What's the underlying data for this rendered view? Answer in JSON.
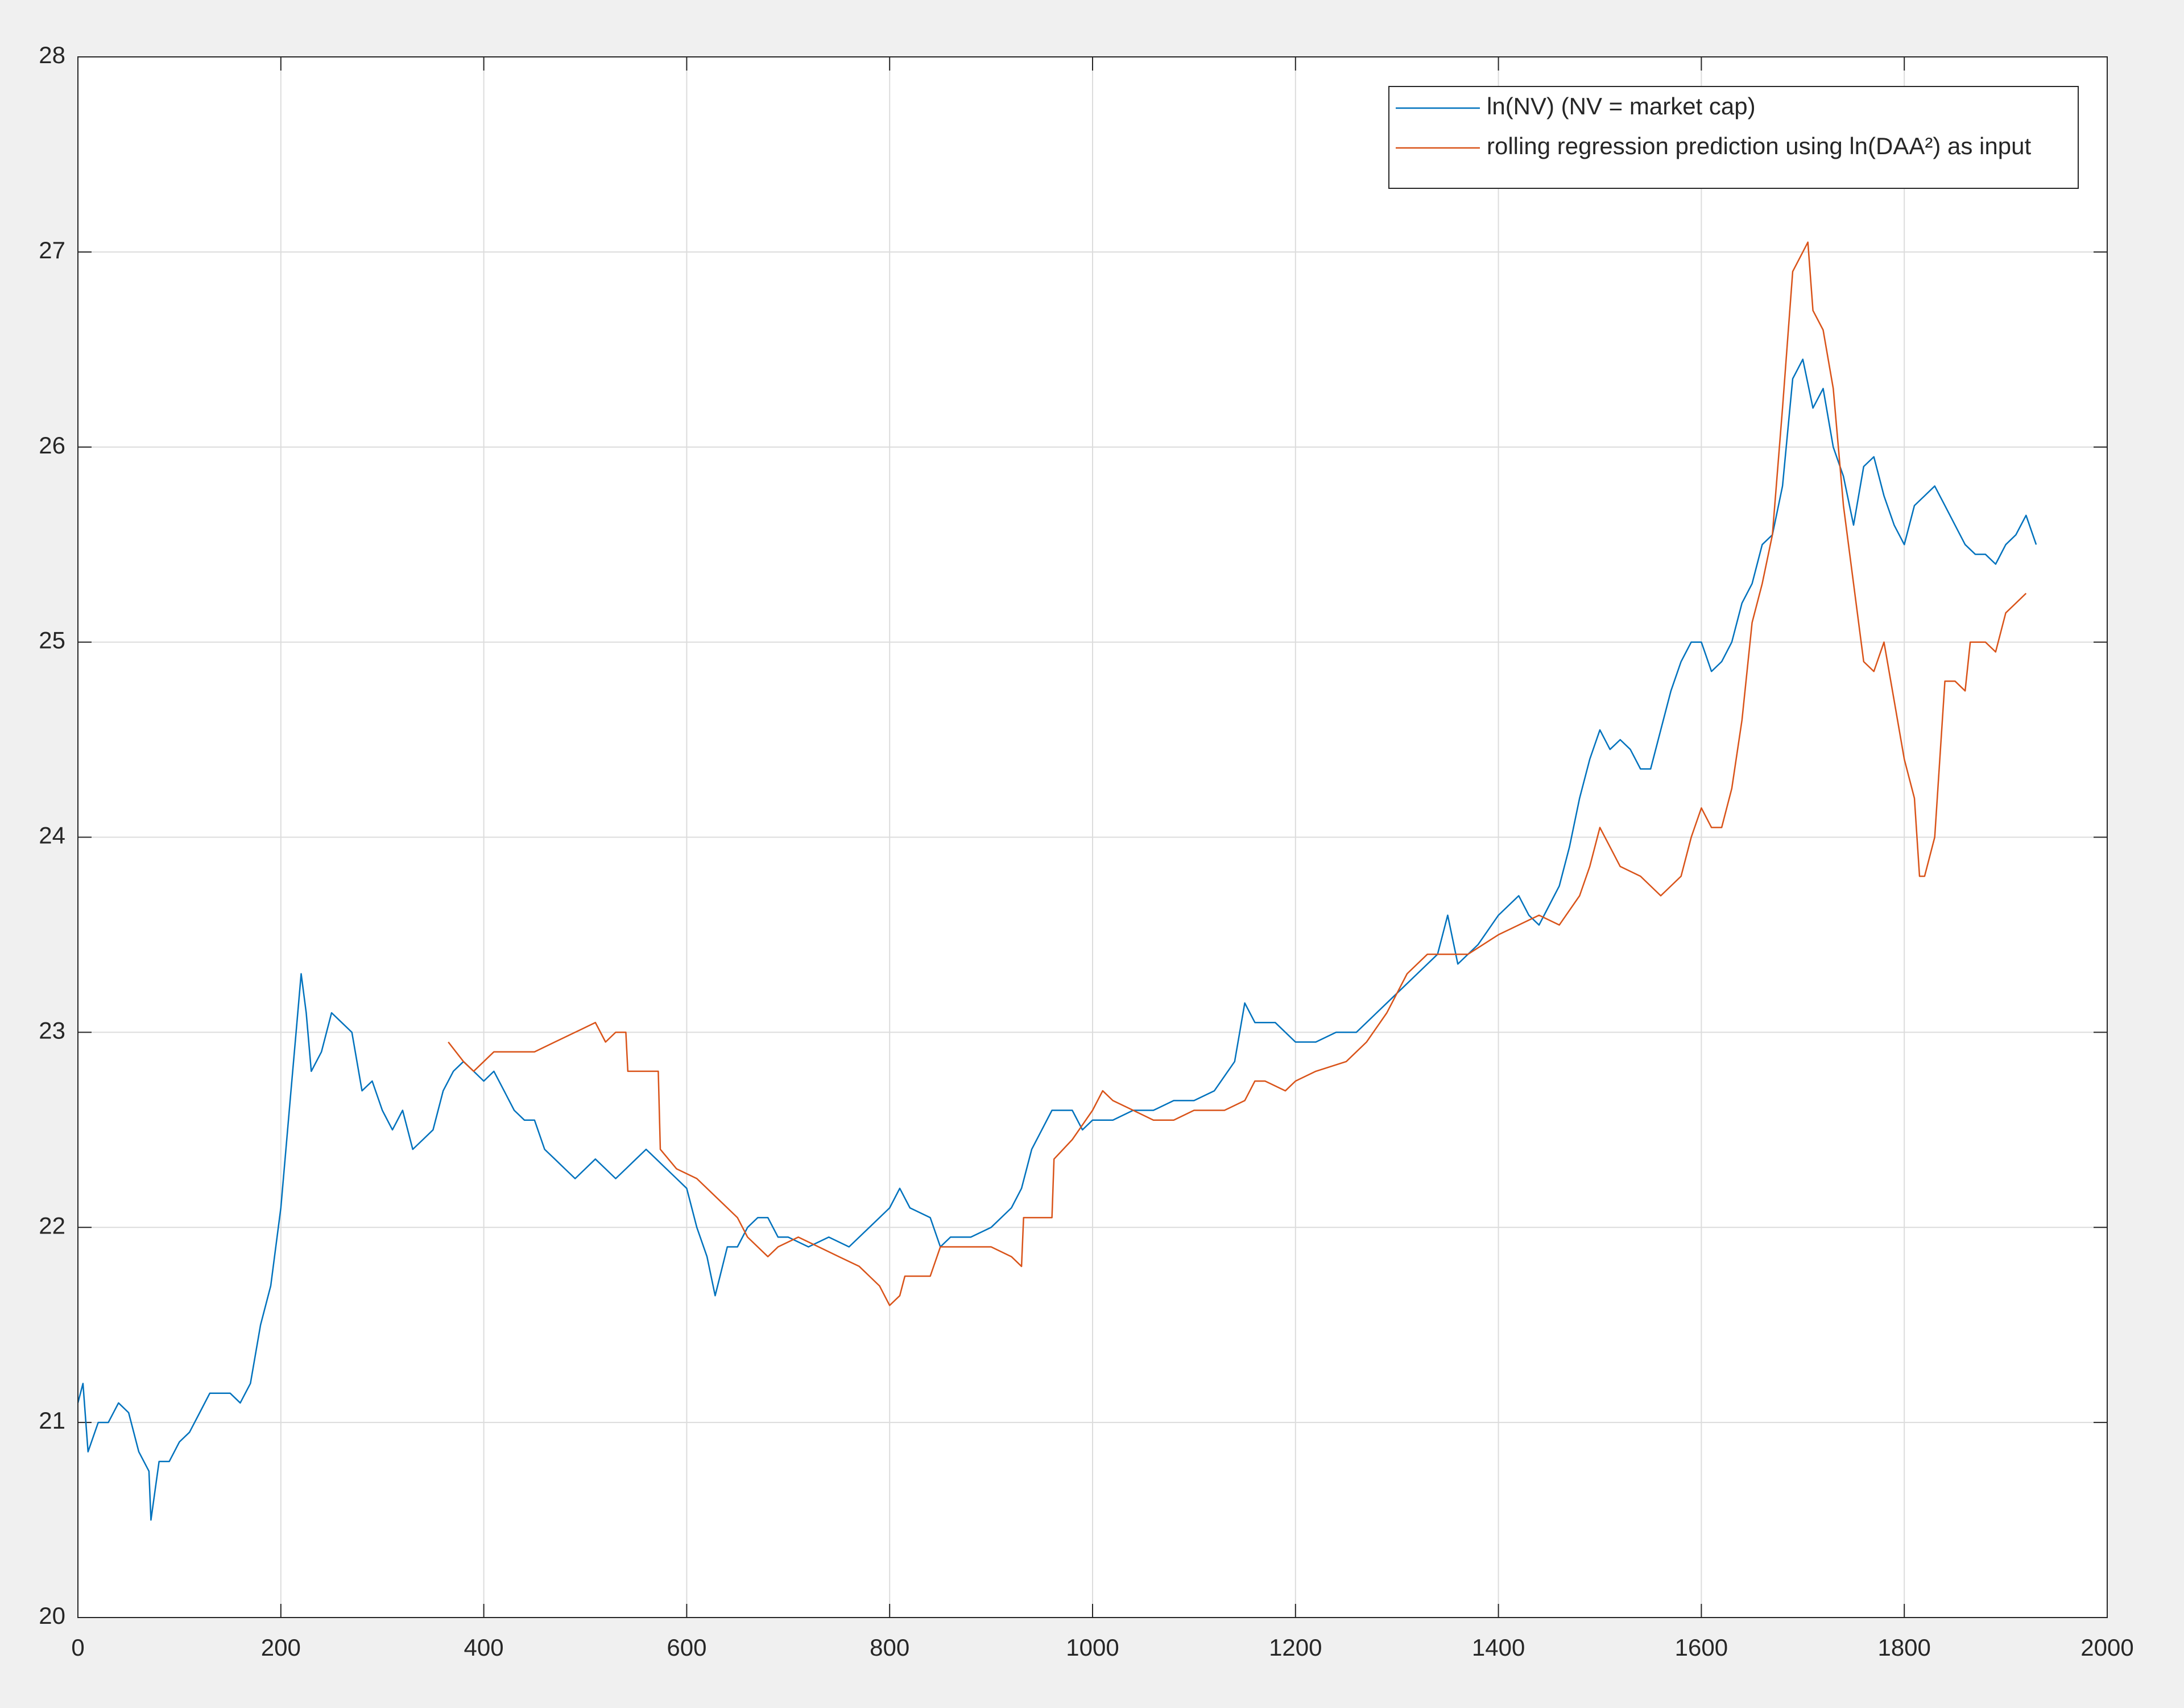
{
  "chart_data": {
    "type": "line",
    "xlim": [
      0,
      2000
    ],
    "xticks": [
      0,
      200,
      400,
      600,
      800,
      1000,
      1200,
      1400,
      1600,
      1800,
      2000
    ],
    "ylim": [
      20,
      28
    ],
    "yticks": [
      20,
      21,
      22,
      23,
      24,
      25,
      26,
      27,
      28
    ],
    "grid": true,
    "legend": "upper right",
    "series": [
      {
        "name": "ln(NV) (NV = market cap)",
        "color": "#0072BD",
        "x": [
          0,
          5,
          10,
          20,
          30,
          40,
          50,
          60,
          70,
          72,
          80,
          90,
          100,
          110,
          120,
          130,
          140,
          150,
          160,
          170,
          180,
          190,
          200,
          210,
          215,
          220,
          225,
          230,
          240,
          250,
          260,
          270,
          280,
          290,
          300,
          310,
          320,
          330,
          340,
          350,
          360,
          370,
          380,
          390,
          400,
          410,
          420,
          430,
          440,
          450,
          460,
          470,
          480,
          490,
          500,
          510,
          520,
          530,
          540,
          550,
          560,
          570,
          580,
          590,
          600,
          610,
          620,
          628,
          640,
          650,
          660,
          670,
          680,
          690,
          700,
          720,
          740,
          760,
          780,
          800,
          810,
          820,
          840,
          850,
          860,
          880,
          900,
          920,
          930,
          940,
          950,
          960,
          970,
          980,
          990,
          1000,
          1020,
          1040,
          1060,
          1080,
          1100,
          1120,
          1140,
          1150,
          1160,
          1180,
          1200,
          1220,
          1240,
          1260,
          1280,
          1300,
          1320,
          1340,
          1350,
          1360,
          1380,
          1400,
          1420,
          1430,
          1440,
          1450,
          1460,
          1470,
          1480,
          1490,
          1500,
          1510,
          1520,
          1530,
          1540,
          1550,
          1560,
          1570,
          1580,
          1590,
          1600,
          1610,
          1620,
          1630,
          1640,
          1650,
          1660,
          1670,
          1680,
          1690,
          1700,
          1710,
          1720,
          1730,
          1740,
          1750,
          1760,
          1770,
          1780,
          1790,
          1800,
          1810,
          1820,
          1830,
          1840,
          1850,
          1860,
          1870,
          1880,
          1890,
          1900,
          1910,
          1920,
          1930
        ],
        "values": [
          21.1,
          21.2,
          20.85,
          21.0,
          21.0,
          21.1,
          21.05,
          20.85,
          20.75,
          20.5,
          20.8,
          20.8,
          20.9,
          20.95,
          21.05,
          21.15,
          21.15,
          21.15,
          21.1,
          21.2,
          21.5,
          21.7,
          22.1,
          22.7,
          23.0,
          23.3,
          23.1,
          22.8,
          22.9,
          23.1,
          23.05,
          23.0,
          22.7,
          22.75,
          22.6,
          22.5,
          22.6,
          22.4,
          22.45,
          22.5,
          22.7,
          22.8,
          22.85,
          22.8,
          22.75,
          22.8,
          22.7,
          22.6,
          22.55,
          22.55,
          22.4,
          22.35,
          22.3,
          22.25,
          22.3,
          22.35,
          22.3,
          22.25,
          22.3,
          22.35,
          22.4,
          22.35,
          22.3,
          22.25,
          22.2,
          22.0,
          21.85,
          21.65,
          21.9,
          21.9,
          22.0,
          22.05,
          22.05,
          21.95,
          21.95,
          21.9,
          21.95,
          21.9,
          22.0,
          22.1,
          22.2,
          22.1,
          22.05,
          21.9,
          21.95,
          21.95,
          22.0,
          22.1,
          22.2,
          22.4,
          22.5,
          22.6,
          22.6,
          22.6,
          22.5,
          22.55,
          22.55,
          22.6,
          22.6,
          22.65,
          22.65,
          22.7,
          22.85,
          23.15,
          23.05,
          23.05,
          22.95,
          22.95,
          23.0,
          23.0,
          23.1,
          23.2,
          23.3,
          23.4,
          23.6,
          23.35,
          23.45,
          23.6,
          23.7,
          23.6,
          23.55,
          23.65,
          23.75,
          23.95,
          24.2,
          24.4,
          24.55,
          24.45,
          24.5,
          24.45,
          24.35,
          24.35,
          24.55,
          24.75,
          24.9,
          25.0,
          25.0,
          24.85,
          24.9,
          25.0,
          25.2,
          25.3,
          25.5,
          25.55,
          25.8,
          26.35,
          26.45,
          26.2,
          26.3,
          26.0,
          25.85,
          25.6,
          25.9,
          25.95,
          25.75,
          25.6,
          25.5,
          25.7,
          25.75,
          25.8,
          25.7,
          25.6,
          25.5,
          25.45,
          25.45,
          25.4,
          25.5,
          25.55,
          25.65,
          25.5
        ]
      },
      {
        "name": "rolling regression prediction using ln(DAA²) as input",
        "color": "#D95319",
        "x": [
          365,
          380,
          390,
          400,
          410,
          430,
          450,
          470,
          490,
          510,
          520,
          530,
          540,
          542,
          560,
          572,
          574,
          590,
          610,
          630,
          650,
          660,
          680,
          690,
          710,
          730,
          750,
          770,
          790,
          800,
          810,
          815,
          840,
          850,
          870,
          900,
          920,
          930,
          932,
          960,
          962,
          980,
          1000,
          1010,
          1020,
          1040,
          1060,
          1080,
          1100,
          1130,
          1150,
          1160,
          1170,
          1190,
          1200,
          1220,
          1250,
          1270,
          1290,
          1310,
          1330,
          1350,
          1370,
          1400,
          1420,
          1440,
          1460,
          1480,
          1490,
          1500,
          1510,
          1520,
          1540,
          1560,
          1580,
          1590,
          1600,
          1610,
          1620,
          1630,
          1640,
          1650,
          1660,
          1670,
          1680,
          1690,
          1700,
          1705,
          1710,
          1720,
          1730,
          1740,
          1750,
          1760,
          1770,
          1780,
          1790,
          1800,
          1810,
          1815,
          1820,
          1830,
          1840,
          1850,
          1860,
          1865,
          1880,
          1890,
          1900,
          1910,
          1920
        ],
        "values": [
          22.95,
          22.85,
          22.8,
          22.85,
          22.9,
          22.9,
          22.9,
          22.95,
          23.0,
          23.05,
          22.95,
          23.0,
          23.0,
          22.8,
          22.8,
          22.8,
          22.4,
          22.3,
          22.25,
          22.15,
          22.05,
          21.95,
          21.85,
          21.9,
          21.95,
          21.9,
          21.85,
          21.8,
          21.7,
          21.6,
          21.65,
          21.75,
          21.75,
          21.9,
          21.9,
          21.9,
          21.85,
          21.8,
          22.05,
          22.05,
          22.35,
          22.45,
          22.6,
          22.7,
          22.65,
          22.6,
          22.55,
          22.55,
          22.6,
          22.6,
          22.65,
          22.75,
          22.75,
          22.7,
          22.75,
          22.8,
          22.85,
          22.95,
          23.1,
          23.3,
          23.4,
          23.4,
          23.4,
          23.5,
          23.55,
          23.6,
          23.55,
          23.7,
          23.85,
          24.05,
          23.95,
          23.85,
          23.8,
          23.7,
          23.8,
          24.0,
          24.15,
          24.05,
          24.05,
          24.25,
          24.6,
          25.1,
          25.3,
          25.55,
          26.2,
          26.9,
          27.0,
          27.05,
          26.7,
          26.6,
          26.3,
          25.7,
          25.3,
          24.9,
          24.85,
          25.0,
          24.7,
          24.4,
          24.2,
          23.8,
          23.8,
          24.0,
          24.8,
          24.8,
          24.75,
          25.0,
          25.0,
          24.95,
          25.15,
          25.2,
          25.25
        ]
      }
    ]
  }
}
